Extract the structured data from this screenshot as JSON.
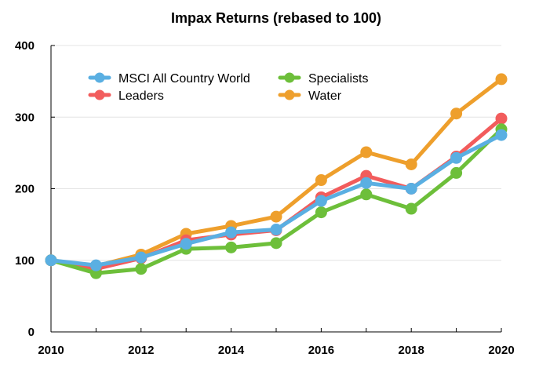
{
  "chart_data": {
    "type": "line",
    "title": "Impax Returns (rebased to 100)",
    "xlabel": "",
    "ylabel": "",
    "x": [
      2010,
      2011,
      2012,
      2013,
      2014,
      2015,
      2016,
      2017,
      2018,
      2019,
      2020
    ],
    "x_ticks": [
      2010,
      2012,
      2014,
      2016,
      2018,
      2020
    ],
    "xlim": [
      2010,
      2020
    ],
    "ylim": [
      0,
      400
    ],
    "y_ticks": [
      0,
      100,
      200,
      300,
      400
    ],
    "grid": "horizontal",
    "legend_position": "top-left",
    "series": [
      {
        "name": "Water",
        "color": "#EE9F2C",
        "values": [
          100,
          92,
          108,
          137,
          148,
          161,
          212,
          251,
          234,
          305,
          353
        ]
      },
      {
        "name": "Leaders",
        "color": "#F25C5C",
        "values": [
          100,
          88,
          103,
          128,
          136,
          142,
          188,
          218,
          200,
          245,
          298
        ]
      },
      {
        "name": "Specialists",
        "color": "#6DBF3A",
        "values": [
          100,
          82,
          88,
          116,
          118,
          124,
          167,
          192,
          172,
          222,
          283
        ]
      },
      {
        "name": "MSCI All Country World",
        "color": "#5AAFE2",
        "values": [
          100,
          93,
          104,
          123,
          139,
          143,
          183,
          208,
          200,
          243,
          275
        ]
      }
    ],
    "legend": [
      {
        "name": "MSCI All Country World",
        "color": "#5AAFE2"
      },
      {
        "name": "Specialists",
        "color": "#6DBF3A"
      },
      {
        "name": "Leaders",
        "color": "#F25C5C"
      },
      {
        "name": "Water",
        "color": "#EE9F2C"
      }
    ]
  }
}
